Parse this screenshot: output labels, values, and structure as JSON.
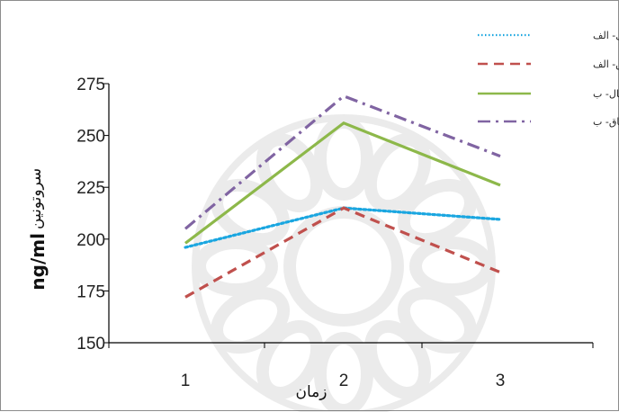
{
  "chart_data": {
    "type": "line",
    "categories": [
      "1",
      "2",
      "3"
    ],
    "ylim": [
      150,
      275
    ],
    "yticks": [
      150,
      175,
      200,
      225,
      250,
      275
    ],
    "xlabel": "زمان",
    "ylabel_unit": "ng/ml",
    "ylabel": "سروتونین",
    "grid": false,
    "legend_position": "top-right",
    "series": [
      {
        "name": "نرمال- الف",
        "values": [
          196,
          215,
          209.5
        ],
        "color": "#1aa6e0",
        "style": "dotted"
      },
      {
        "name": "چاق- الف",
        "values": [
          172,
          215,
          184
        ],
        "color": "#c0504d",
        "style": "dashed"
      },
      {
        "name": "نرمال- ب",
        "values": [
          198,
          256,
          226
        ],
        "color": "#8db84a",
        "style": "solid"
      },
      {
        "name": "چاق- ب",
        "values": [
          205,
          269,
          240
        ],
        "color": "#8064a2",
        "style": "dashdot"
      }
    ]
  }
}
